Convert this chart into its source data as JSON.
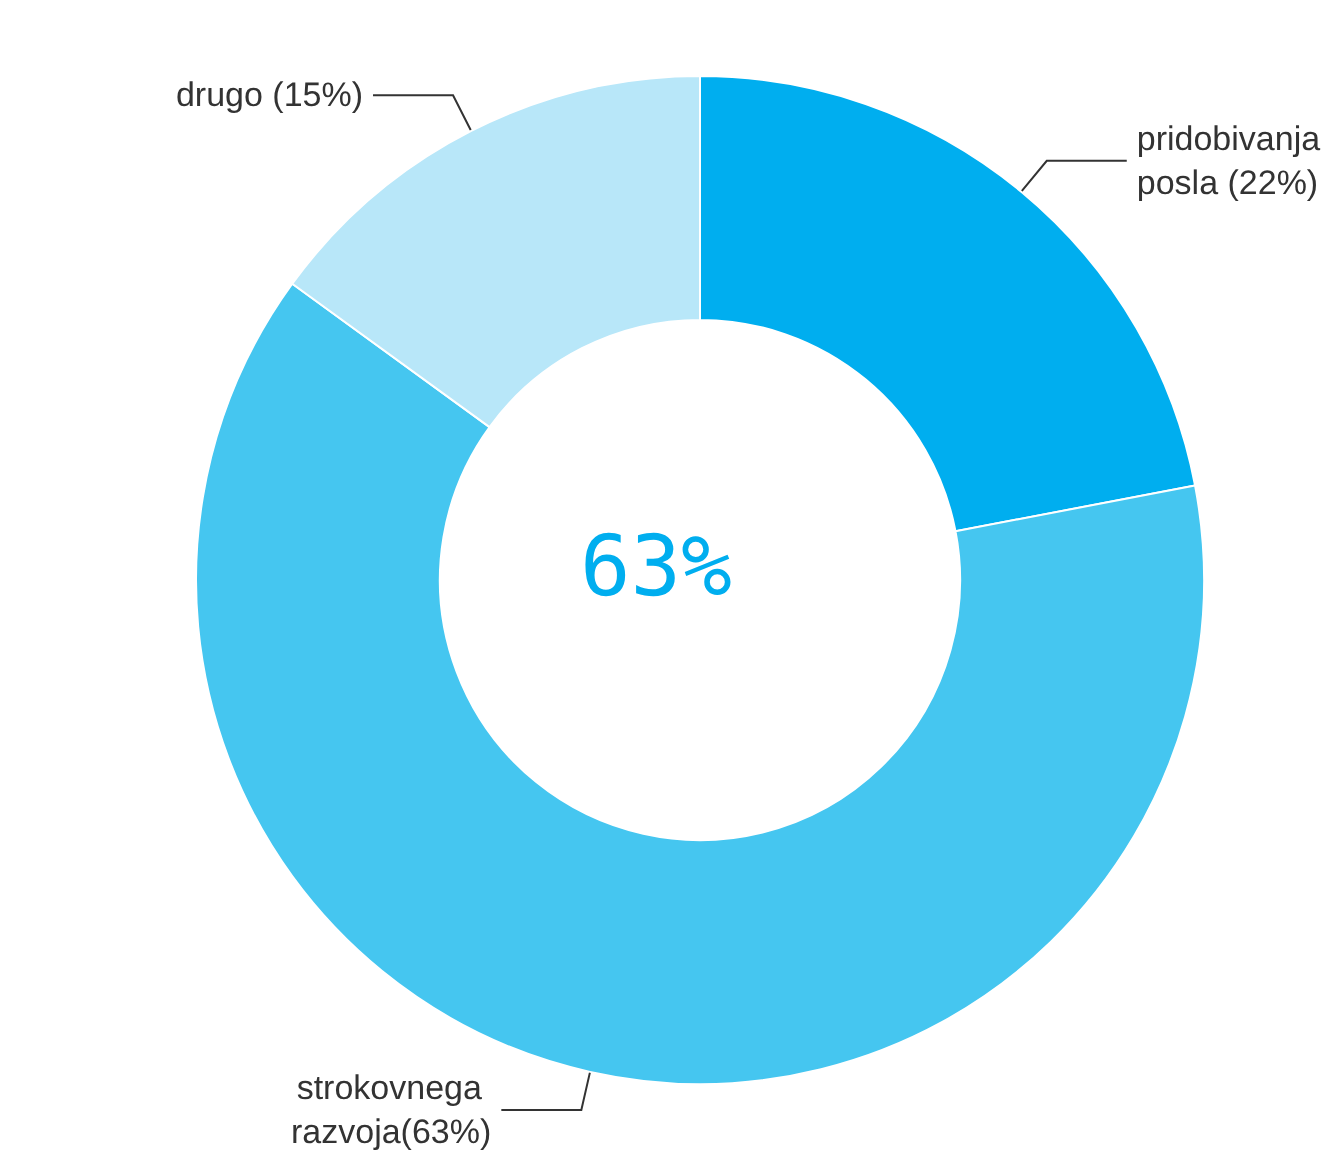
{
  "chart_data": {
    "type": "donut",
    "categories": [
      "pridobivanja posla (22%)",
      "strokovnega razvoja(63%)",
      "drugo (15%)"
    ],
    "values": [
      22,
      63,
      15
    ],
    "colors": [
      "#00aeef",
      "#45c6f0",
      "#b8e7f9"
    ],
    "annotations": [
      "63%"
    ],
    "legend": false
  }
}
